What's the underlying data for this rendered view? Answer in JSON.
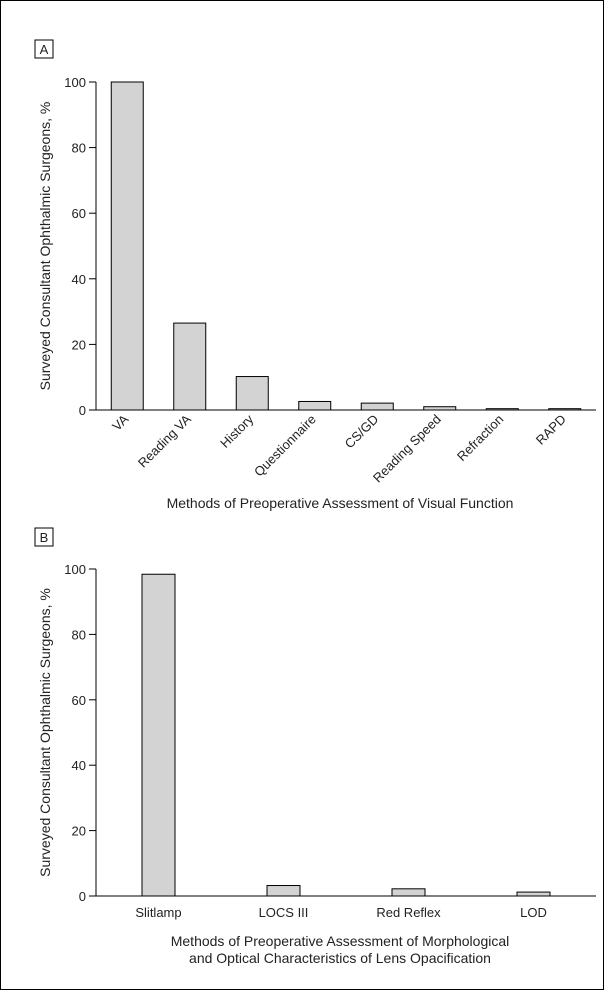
{
  "chart_data": [
    {
      "panel": "A",
      "type": "bar",
      "categories": [
        "VA",
        "Reading VA",
        "History",
        "Questionnaire",
        "CS/GD",
        "Reading Speed",
        "Refraction",
        "RAPD"
      ],
      "values": [
        100,
        26.5,
        10.2,
        2.6,
        2.1,
        1.0,
        0.4,
        0.4
      ],
      "xlabel": "Methods of Preoperative Assessment of Visual Function",
      "ylabel": "Surveyed Consultant Ophthalmic Surgeons, %",
      "ylim": [
        0,
        100
      ],
      "yticks": [
        0,
        20,
        40,
        60,
        80,
        100
      ],
      "bar_color": "#d3d3d3",
      "grid": false
    },
    {
      "panel": "B",
      "type": "bar",
      "categories": [
        "Slitlamp",
        "LOCS III",
        "Red Reflex",
        "LOD"
      ],
      "values": [
        98.4,
        3.2,
        2.2,
        1.2
      ],
      "xlabel": "Methods of Preoperative Assessment of Morphological and Optical Characteristics of Lens Opacification",
      "xlabel_lines": [
        "Methods of Preoperative Assessment of Morphological",
        "and Optical Characteristics of Lens Opacification"
      ],
      "ylabel": "Surveyed Consultant Ophthalmic Surgeons, %",
      "ylim": [
        0,
        100
      ],
      "yticks": [
        0,
        20,
        40,
        60,
        80,
        100
      ],
      "bar_color": "#d3d3d3",
      "grid": false
    }
  ]
}
